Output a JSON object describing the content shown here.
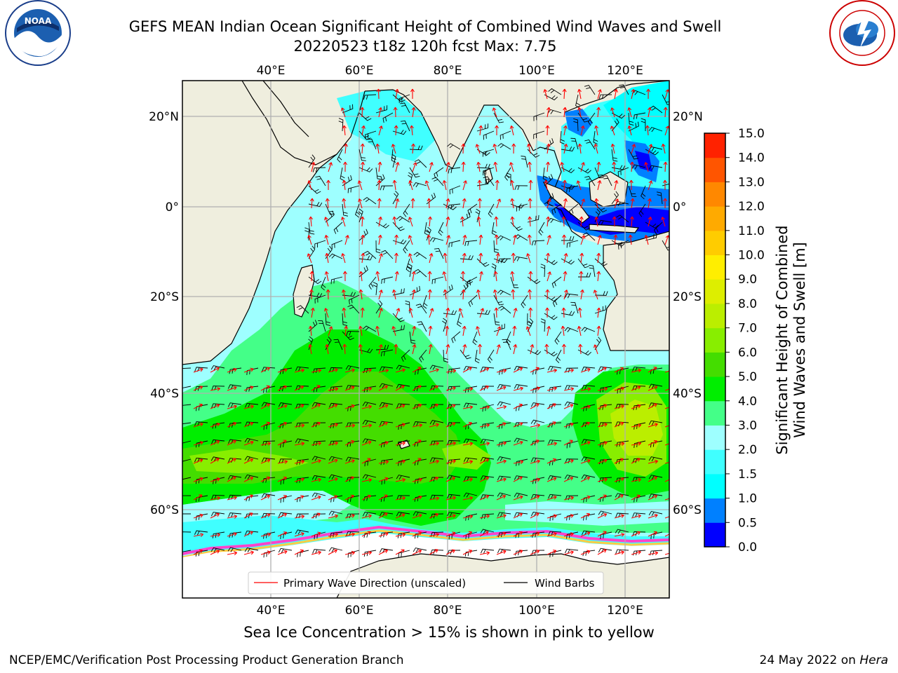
{
  "title": {
    "line1": "GEFS MEAN Indian Ocean Significant Height of Combined Wind Waves and Swell",
    "line2": "20220523 t18z 120h fcst   Max: 7.75"
  },
  "logos": {
    "left": "NOAA",
    "right": "NATIONAL WEATHER SERVICE"
  },
  "map": {
    "lon_ticks_top": [
      "40°E",
      "60°E",
      "80°E",
      "100°E",
      "120°E"
    ],
    "lon_ticks_bottom": [
      "40°E",
      "60°E",
      "80°E",
      "100°E",
      "120°E"
    ],
    "lat_ticks_left": [
      "20°N",
      "0°",
      "20°S",
      "40°S",
      "60°S"
    ],
    "lat_ticks_right": [
      "20°N",
      "0°",
      "20°S",
      "40°S",
      "60°S"
    ],
    "legend": {
      "wave_direction": "Primary Wave Direction (unscaled)",
      "wind_barbs": "Wind Barbs"
    },
    "colors": {
      "land": "#efeede",
      "sea_ice": "#ffffff",
      "arrow": "#ff0000",
      "barb": "#000000"
    }
  },
  "colorbar": {
    "label_line1": "Significant Height of Combined",
    "label_line2": "Wind Waves and Swell [m]",
    "ticks": [
      "0.0",
      "0.5",
      "1.0",
      "1.5",
      "2.0",
      "3.0",
      "4.0",
      "5.0",
      "6.0",
      "7.0",
      "8.0",
      "9.0",
      "10.0",
      "11.0",
      "12.0",
      "13.0",
      "14.0",
      "15.0"
    ],
    "colors": [
      "#0000ff",
      "#0080ff",
      "#00ffff",
      "#40ffff",
      "#9effff",
      "#44ff88",
      "#00ee00",
      "#44dd00",
      "#88ee00",
      "#bbee00",
      "#ddee00",
      "#ffee00",
      "#ffcc00",
      "#ffaa00",
      "#ff8800",
      "#ff5500",
      "#ff2200"
    ]
  },
  "caption": "Sea Ice Concentration > 15% is shown in pink to yellow",
  "footer": {
    "left": "NCEP/EMC/Verification Post Processing Product Generation Branch",
    "right_prefix": "24 May 2022 on ",
    "right_machine": "Hera"
  }
}
